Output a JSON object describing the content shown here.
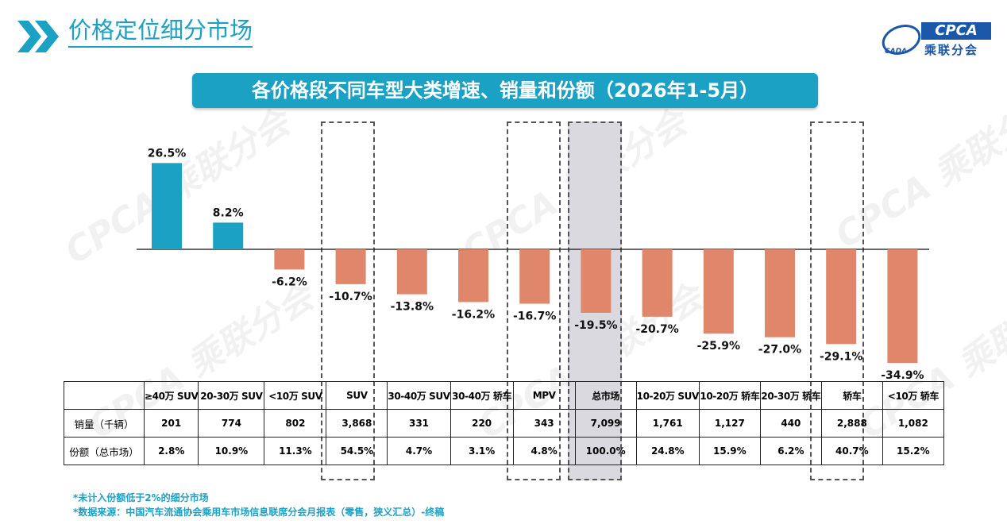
{
  "page": {
    "title": "价格定位细分市场"
  },
  "logo": {
    "brand": "CPCA",
    "sub": "乘联分会",
    "mark": "CADA"
  },
  "watermark": {
    "text": "CPCA 乘联分会"
  },
  "banner": {
    "text": "各价格段不同车型大类增速、销量和份额（2026年1-5月）"
  },
  "colors": {
    "positive": "#1ba1c4",
    "negative": "#e0866a",
    "accent": "#1ba1c4",
    "highlight": "#d9d9df"
  },
  "chart_data": {
    "type": "bar",
    "title": "各价格段不同车型大类增速、销量和份额（2026年1-5月）",
    "categories": [
      "≥40万 SUV",
      "20-30万 SUV",
      "<10万 SUV",
      "SUV",
      "30-40万 SUV",
      "30-40万 轿车",
      "MPV",
      "总市场",
      "10-20万 SUV",
      "10-20万 轿车",
      "20-30万 轿车",
      "轿车",
      "<10万 轿车"
    ],
    "values": [
      26.5,
      8.2,
      -6.2,
      -10.7,
      -13.8,
      -16.2,
      -16.7,
      -19.5,
      -20.7,
      -25.9,
      -27.0,
      -29.1,
      -34.9
    ],
    "value_labels": [
      "26.5%",
      "8.2%",
      "-6.2%",
      "-10.7%",
      "-13.8%",
      "-16.2%",
      "-16.7%",
      "-19.5%",
      "-20.7%",
      "-25.9%",
      "-27.0%",
      "-29.1%",
      "-34.9%"
    ],
    "unit": "%",
    "ylim": [
      -35,
      27
    ],
    "grid": false,
    "legend": "none",
    "dashed_highlights": [
      "SUV",
      "MPV",
      "轿车"
    ],
    "shaded_highlight": "总市场"
  },
  "table": {
    "row_labels": [
      "销量（千辆）",
      "份额（总市场）"
    ],
    "sales": [
      "201",
      "774",
      "802",
      "3,868",
      "331",
      "220",
      "343",
      "7,099",
      "1,761",
      "1,127",
      "440",
      "2,888",
      "1,082"
    ],
    "share": [
      "2.8%",
      "10.9%",
      "11.3%",
      "54.5%",
      "4.7%",
      "3.1%",
      "4.8%",
      "100.0%",
      "24.8%",
      "15.9%",
      "6.2%",
      "40.7%",
      "15.2%"
    ]
  },
  "notes": {
    "line1": "*未计入份额低于2%的细分市场",
    "line2": "*数据来源：中国汽车流通协会乘用车市场信息联席分会月报表（零售，狭义汇总）-终稿"
  }
}
